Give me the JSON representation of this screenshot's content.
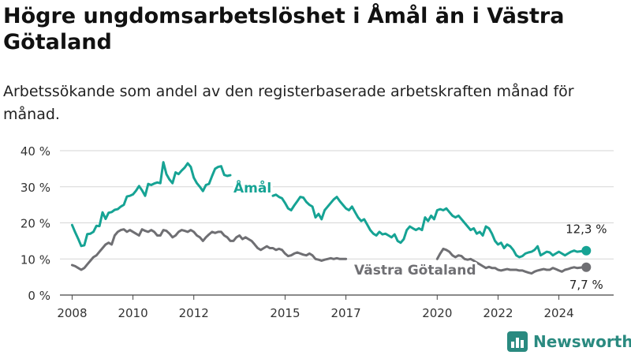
{
  "header": {
    "title": "Högre ungdomsarbetslöshet i Åmål än i Västra Götaland",
    "subtitle": "Arbetssökande som andel av den registerbaserade arbetskraften månad för månad."
  },
  "brand": {
    "name": "Newsworthy",
    "icon": "bar-chart-logo-icon"
  },
  "colors": {
    "amal": "#16a394",
    "vg": "#6f6f73",
    "grid": "#d6d6d6",
    "brand": "#2a8a80"
  },
  "chart_data": {
    "type": "line",
    "xlabel": "",
    "ylabel": "",
    "xlim": [
      2007.6,
      2025.8
    ],
    "ylim": [
      0,
      40
    ],
    "x_ticks": [
      2008,
      2010,
      2012,
      2015,
      2017,
      2020,
      2022,
      2024
    ],
    "x_tick_labels": [
      "2008",
      "2010",
      "2012",
      "2015",
      "2017",
      "2020",
      "2022",
      "2024"
    ],
    "y_ticks": [
      0,
      10,
      20,
      30,
      40
    ],
    "y_tick_labels": [
      "0 %",
      "10 %",
      "20 %",
      "30 %",
      "40 %"
    ],
    "grid": "horizontal",
    "series": [
      {
        "name": "Åmål",
        "end_label": "12,3 %",
        "segments": [
          {
            "x": [
              2008.0,
              2008.1,
              2008.2,
              2008.3,
              2008.4,
              2008.5,
              2008.6,
              2008.7,
              2008.8,
              2008.9,
              2009.0,
              2009.1,
              2009.2,
              2009.3,
              2009.4,
              2009.5,
              2009.6,
              2009.7,
              2009.8,
              2009.9,
              2010.0,
              2010.1,
              2010.2,
              2010.3,
              2010.4,
              2010.5,
              2010.6,
              2010.7,
              2010.8,
              2010.9,
              2011.0,
              2011.1,
              2011.2,
              2011.3,
              2011.4,
              2011.5,
              2011.6,
              2011.7,
              2011.8,
              2011.9,
              2012.0,
              2012.1,
              2012.2,
              2012.3,
              2012.4,
              2012.5,
              2012.6,
              2012.7,
              2012.8,
              2012.9,
              2013.0,
              2013.1,
              2013.2
            ],
            "y": [
              19.4,
              17.4,
              15.6,
              13.6,
              13.8,
              16.9,
              17.0,
              17.5,
              19.2,
              19.1,
              22.9,
              21.1,
              22.8,
              23.0,
              23.6,
              23.8,
              24.5,
              25.0,
              27.3,
              27.5,
              27.9,
              28.9,
              30.2,
              29.0,
              27.5,
              30.8,
              30.5,
              30.9,
              31.2,
              31.0,
              36.8,
              33.5,
              32.0,
              31.0,
              34.0,
              33.5,
              34.5,
              35.3,
              36.5,
              35.5,
              32.5,
              31.0,
              30.0,
              28.8,
              30.5,
              30.8,
              33.0,
              35.0,
              35.5,
              35.7,
              33.3,
              33.0,
              33.2
            ]
          },
          {
            "x": [
              2014.6,
              2014.7,
              2014.8,
              2014.9,
              2015.0,
              2015.1,
              2015.2,
              2015.3,
              2015.4,
              2015.5,
              2015.6,
              2015.7,
              2015.8,
              2015.9,
              2016.0,
              2016.1,
              2016.2,
              2016.3,
              2016.4,
              2016.5,
              2016.6,
              2016.7,
              2016.8,
              2016.9,
              2017.0,
              2017.1,
              2017.2,
              2017.3,
              2017.4,
              2017.5,
              2017.6,
              2017.7,
              2017.8,
              2017.9,
              2018.0,
              2018.1,
              2018.2,
              2018.3,
              2018.4,
              2018.5,
              2018.6,
              2018.7,
              2018.8,
              2018.9,
              2019.0,
              2019.1,
              2019.2,
              2019.3,
              2019.4,
              2019.5,
              2019.6,
              2019.7,
              2019.8,
              2019.9,
              2020.0,
              2020.1,
              2020.2,
              2020.3,
              2020.4,
              2020.5,
              2020.6,
              2020.7,
              2020.8,
              2020.9,
              2021.0,
              2021.1,
              2021.2,
              2021.3,
              2021.4,
              2021.5,
              2021.6,
              2021.7,
              2021.8,
              2021.9,
              2022.0,
              2022.1,
              2022.2,
              2022.3,
              2022.4,
              2022.5,
              2022.6,
              2022.7,
              2022.8,
              2022.9,
              2023.0,
              2023.1,
              2023.2,
              2023.3,
              2023.4,
              2023.5,
              2023.6,
              2023.7,
              2023.8,
              2023.9,
              2024.0,
              2024.1,
              2024.2,
              2024.3,
              2024.4,
              2024.5,
              2024.6,
              2024.7,
              2024.8,
              2024.9
            ],
            "y": [
              27.5,
              27.8,
              27.2,
              26.8,
              25.5,
              24.0,
              23.5,
              24.8,
              26.0,
              27.2,
              27.0,
              25.8,
              25.0,
              24.5,
              21.5,
              22.5,
              21.0,
              23.5,
              24.5,
              25.5,
              26.5,
              27.2,
              26.0,
              25.0,
              24.0,
              23.5,
              24.5,
              23.0,
              21.5,
              20.5,
              21.0,
              19.5,
              18.0,
              17.0,
              16.5,
              17.5,
              16.8,
              17.0,
              16.5,
              16.0,
              16.8,
              15.0,
              14.5,
              15.5,
              18.0,
              19.0,
              18.5,
              18.0,
              18.5,
              18.0,
              21.5,
              20.5,
              22.0,
              21.0,
              23.5,
              23.8,
              23.5,
              24.0,
              23.0,
              22.0,
              21.5,
              22.0,
              21.0,
              20.0,
              19.0,
              18.0,
              18.5,
              17.0,
              17.5,
              16.5,
              19.0,
              18.5,
              17.0,
              15.0,
              14.0,
              14.5,
              13.0,
              14.0,
              13.5,
              12.5,
              11.0,
              10.5,
              10.8,
              11.5,
              11.8,
              12.0,
              12.5,
              13.5,
              11.0,
              11.5,
              12.0,
              11.8,
              11.0,
              11.5,
              12.0,
              11.5,
              11.0,
              11.5,
              12.0,
              12.3,
              12.0,
              12.1,
              12.2,
              12.3
            ]
          }
        ]
      },
      {
        "name": "Västra Götaland",
        "end_label": "7,7 %",
        "segments": [
          {
            "x": [
              2008.0,
              2008.1,
              2008.2,
              2008.3,
              2008.4,
              2008.5,
              2008.6,
              2008.7,
              2008.8,
              2008.9,
              2009.0,
              2009.1,
              2009.2,
              2009.3,
              2009.4,
              2009.5,
              2009.6,
              2009.7,
              2009.8,
              2009.9,
              2010.0,
              2010.1,
              2010.2,
              2010.3,
              2010.4,
              2010.5,
              2010.6,
              2010.7,
              2010.8,
              2010.9,
              2011.0,
              2011.1,
              2011.2,
              2011.3,
              2011.4,
              2011.5,
              2011.6,
              2011.7,
              2011.8,
              2011.9,
              2012.0,
              2012.1,
              2012.2,
              2012.3,
              2012.4,
              2012.5,
              2012.6,
              2012.7,
              2012.8,
              2012.9,
              2013.0,
              2013.1,
              2013.2,
              2013.3,
              2013.4,
              2013.5,
              2013.6,
              2013.7,
              2013.8,
              2013.9,
              2014.0,
              2014.1,
              2014.2,
              2014.3,
              2014.4,
              2014.5,
              2014.6,
              2014.7,
              2014.8,
              2014.9,
              2015.0,
              2015.1,
              2015.2,
              2015.3,
              2015.4,
              2015.5,
              2015.6,
              2015.7,
              2015.8,
              2015.9,
              2016.0,
              2016.1,
              2016.2,
              2016.3,
              2016.4,
              2016.5,
              2016.6,
              2016.7,
              2016.8,
              2016.9,
              2017.0
            ],
            "y": [
              8.3,
              8.0,
              7.5,
              7.0,
              7.5,
              8.5,
              9.5,
              10.5,
              11.0,
              12.0,
              13.0,
              14.0,
              14.5,
              14.0,
              16.5,
              17.5,
              18.0,
              18.2,
              17.5,
              18.0,
              17.5,
              17.0,
              16.5,
              18.2,
              17.8,
              17.5,
              18.0,
              17.5,
              16.5,
              16.5,
              18.0,
              17.8,
              17.0,
              16.0,
              16.5,
              17.5,
              18.0,
              17.8,
              17.5,
              18.0,
              17.5,
              16.5,
              16.0,
              15.0,
              16.0,
              16.8,
              17.5,
              17.2,
              17.5,
              17.5,
              16.5,
              16.0,
              15.0,
              15.0,
              16.0,
              16.5,
              15.5,
              16.0,
              15.5,
              15.0,
              14.0,
              13.0,
              12.5,
              13.0,
              13.5,
              13.0,
              13.0,
              12.5,
              12.8,
              12.5,
              11.5,
              10.8,
              11.0,
              11.5,
              11.8,
              11.5,
              11.2,
              11.0,
              11.5,
              11.0,
              10.0,
              9.8,
              9.5,
              9.8,
              10.0,
              10.2,
              10.0,
              10.2,
              10.0,
              10.0,
              10.0
            ]
          },
          {
            "x": [
              2020.0,
              2020.1,
              2020.2,
              2020.3,
              2020.4,
              2020.5,
              2020.6,
              2020.7,
              2020.8,
              2020.9,
              2021.0,
              2021.1,
              2021.2,
              2021.3,
              2021.4,
              2021.5,
              2021.6,
              2021.7,
              2021.8,
              2021.9,
              2022.0,
              2022.1,
              2022.2,
              2022.3,
              2022.4,
              2022.5,
              2022.6,
              2022.7,
              2022.8,
              2022.9,
              2023.0,
              2023.1,
              2023.2,
              2023.3,
              2023.4,
              2023.5,
              2023.6,
              2023.7,
              2023.8,
              2023.9,
              2024.0,
              2024.1,
              2024.2,
              2024.3,
              2024.4,
              2024.5,
              2024.6,
              2024.7,
              2024.8,
              2024.9
            ],
            "y": [
              10.0,
              11.5,
              12.8,
              12.5,
              12.0,
              11.0,
              10.5,
              11.0,
              10.8,
              10.0,
              9.8,
              10.0,
              9.5,
              9.0,
              8.5,
              8.0,
              7.5,
              7.8,
              7.5,
              7.5,
              7.0,
              6.8,
              7.0,
              7.2,
              7.0,
              7.0,
              7.0,
              6.8,
              6.8,
              6.5,
              6.2,
              6.0,
              6.5,
              6.8,
              7.0,
              7.2,
              7.0,
              7.0,
              7.5,
              7.2,
              6.8,
              6.5,
              7.0,
              7.2,
              7.5,
              7.7,
              7.5,
              7.6,
              7.7,
              7.7
            ]
          }
        ]
      }
    ],
    "annotations": [
      {
        "text": "Åmål",
        "series": "Åmål"
      },
      {
        "text": "Västra Götaland",
        "series": "Västra Götaland"
      }
    ]
  }
}
